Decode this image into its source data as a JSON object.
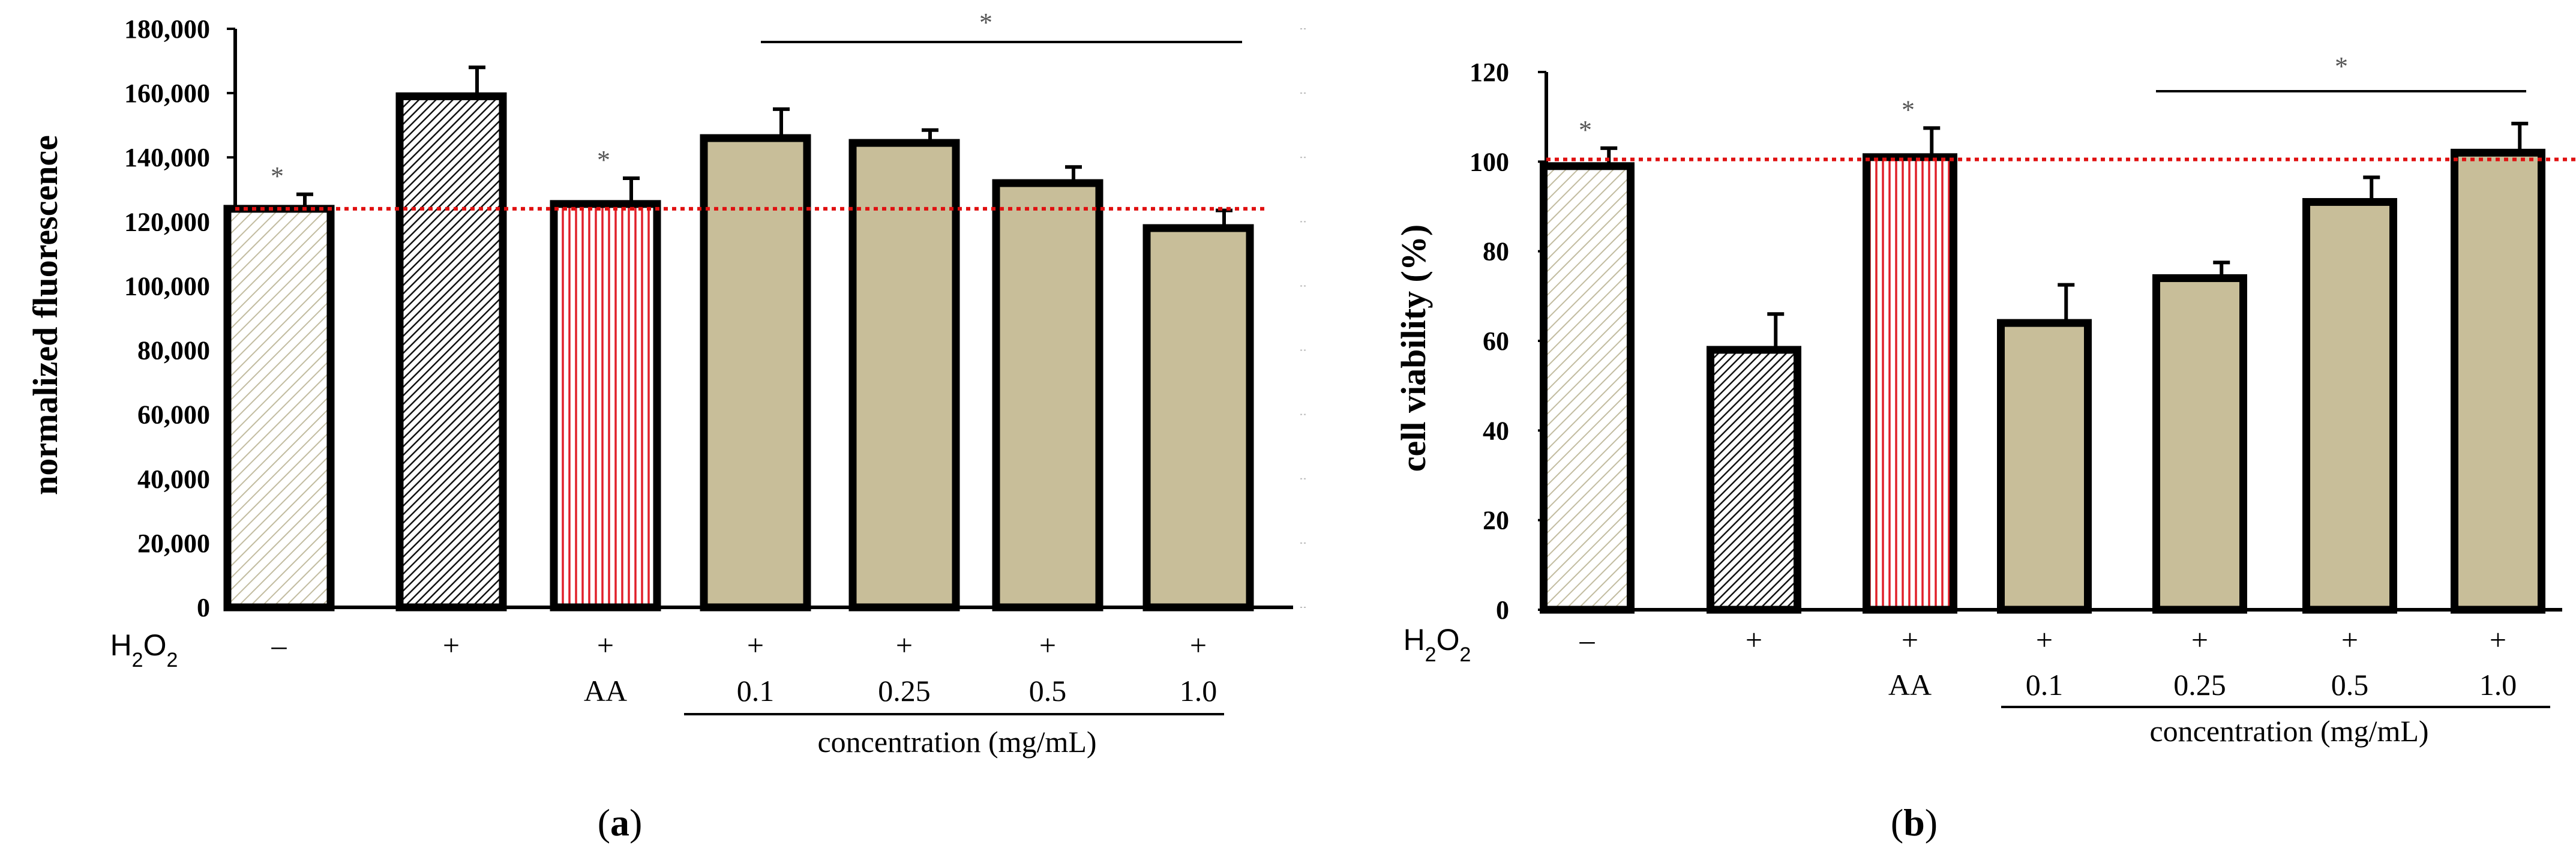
{
  "chart_data": [
    {
      "type": "bar",
      "panel_label": "(a)",
      "ylabel": "normalized fluorescence",
      "ylim": [
        0,
        180000
      ],
      "yticks": [
        0,
        20000,
        40000,
        60000,
        80000,
        100000,
        120000,
        140000,
        160000,
        180000
      ],
      "ytick_labels": [
        "0",
        "20,000",
        "40,000",
        "60,000",
        "80,000",
        "100,000",
        "120,000",
        "140,000",
        "160,000",
        "180,000"
      ],
      "reference_line": 124000,
      "row_label": "H2O2",
      "bars": [
        {
          "value": 124000,
          "error": 4500,
          "h2o2": "–",
          "sub": "",
          "pattern": "control",
          "star": true
        },
        {
          "value": 159000,
          "error": 9000,
          "h2o2": "+",
          "sub": "",
          "pattern": "h2o2",
          "star": false
        },
        {
          "value": 125500,
          "error": 8000,
          "h2o2": "+",
          "sub": "AA",
          "pattern": "aa",
          "star": true
        },
        {
          "value": 146000,
          "error": 9000,
          "h2o2": "+",
          "sub": "0.1",
          "pattern": "sample",
          "star": false
        },
        {
          "value": 144500,
          "error": 4000,
          "h2o2": "+",
          "sub": "0.25",
          "pattern": "sample",
          "star": false
        },
        {
          "value": 132000,
          "error": 5000,
          "h2o2": "+",
          "sub": "0.5",
          "pattern": "sample",
          "star": false
        },
        {
          "value": 118000,
          "error": 5500,
          "h2o2": "+",
          "sub": "1.0",
          "pattern": "sample",
          "star": false
        }
      ],
      "bracket_star": "*",
      "group_label": "concentration (mg/mL)"
    },
    {
      "type": "bar",
      "panel_label": "(b)",
      "ylabel": "cell viability  (%)",
      "ylim": [
        0,
        120
      ],
      "yticks": [
        0,
        20,
        40,
        60,
        80,
        100,
        120
      ],
      "ytick_labels": [
        "0",
        "20",
        "40",
        "60",
        "80",
        "100",
        "120"
      ],
      "reference_line": 100.5,
      "row_label": "H2O2",
      "bars": [
        {
          "value": 99,
          "error": 4,
          "h2o2": "–",
          "sub": "",
          "pattern": "control",
          "star": true
        },
        {
          "value": 58,
          "error": 8,
          "h2o2": "+",
          "sub": "",
          "pattern": "h2o2",
          "star": false
        },
        {
          "value": 101,
          "error": 6.5,
          "h2o2": "+",
          "sub": "AA",
          "pattern": "aa",
          "star": true
        },
        {
          "value": 64,
          "error": 8.5,
          "h2o2": "+",
          "sub": "0.1",
          "pattern": "sample",
          "star": false
        },
        {
          "value": 74,
          "error": 3.5,
          "h2o2": "+",
          "sub": "0.25",
          "pattern": "sample",
          "star": false
        },
        {
          "value": 91,
          "error": 5.5,
          "h2o2": "+",
          "sub": "0.5",
          "pattern": "sample",
          "star": false
        },
        {
          "value": 102,
          "error": 6.5,
          "h2o2": "+",
          "sub": "1.0",
          "pattern": "sample",
          "star": false
        }
      ],
      "bracket_star": "*",
      "group_label": "concentration (mg/mL)"
    }
  ],
  "colors": {
    "sample_fill": "#c8be99",
    "aa_stripe": "#e0202a",
    "control_hatch": "#c2bca0",
    "reference_line": "#e01010"
  }
}
